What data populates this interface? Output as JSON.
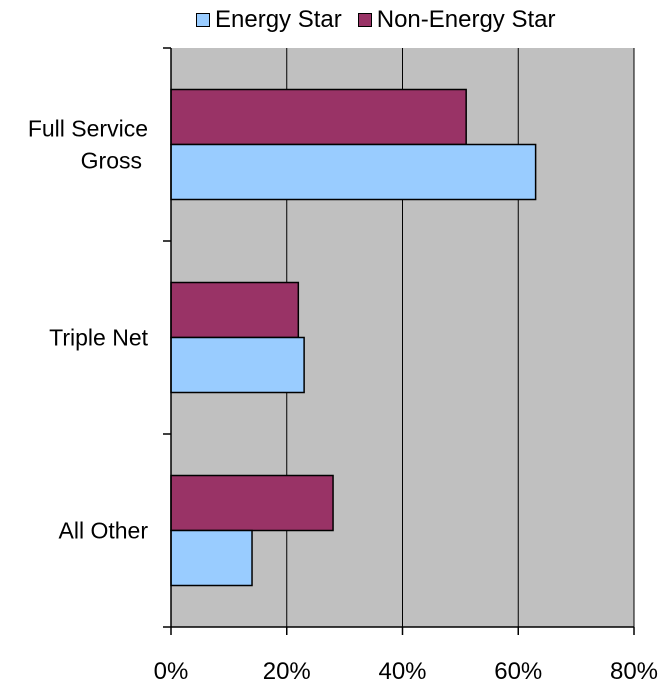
{
  "chart_data": {
    "type": "bar",
    "orientation": "horizontal",
    "categories": [
      "Full Service Gross",
      "Triple Net",
      "All Other"
    ],
    "category_lines": [
      [
        "Full Service",
        "Gross"
      ],
      [
        "Triple Net"
      ],
      [
        "All Other"
      ]
    ],
    "series": [
      {
        "name": "Energy Star",
        "values": [
          63,
          23,
          14
        ],
        "color": "#99ccff"
      },
      {
        "name": "Non-Energy Star",
        "values": [
          51,
          22,
          28
        ],
        "color": "#993366"
      }
    ],
    "xlim": [
      0,
      80
    ],
    "xticks": [
      0,
      20,
      40,
      60,
      80
    ],
    "tick_format": "{v}%",
    "grid": true,
    "plot_background": "#c0c0c0",
    "legend_position": "top"
  }
}
